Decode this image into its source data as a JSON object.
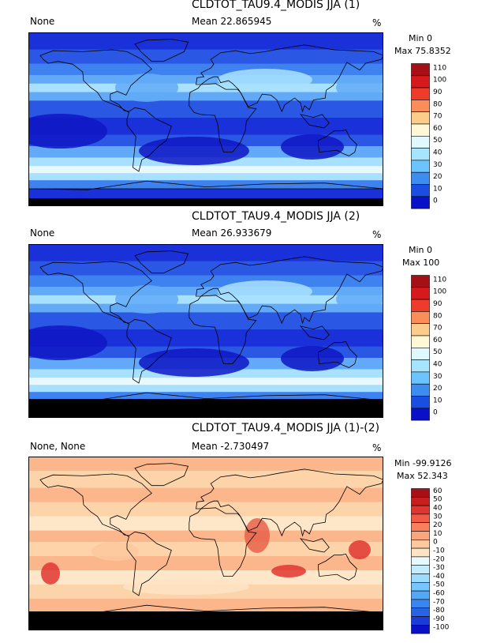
{
  "panels": [
    {
      "title": "CLDTOT_TAU9.4_MODIS JJA (1)",
      "left_label": "None",
      "mean_label": "Mean 22.865945",
      "units": "%",
      "min_label": "Min 0",
      "max_label": "Max 75.8352",
      "scale": "sequential",
      "colorbar": {
        "ticks": [
          "110",
          "100",
          "90",
          "80",
          "70",
          "60",
          "50",
          "40",
          "30",
          "20",
          "10",
          "0"
        ],
        "colors": [
          "#a50f15",
          "#d7191c",
          "#ef3b2c",
          "#fc8d59",
          "#fdcc8a",
          "#fff7d6",
          "#e0f8ff",
          "#a6e4ff",
          "#6cc4ff",
          "#3d8cf0",
          "#1a4de0",
          "#0a10c8"
        ]
      }
    },
    {
      "title": "CLDTOT_TAU9.4_MODIS JJA (2)",
      "left_label": "None",
      "mean_label": "Mean 26.933679",
      "units": "%",
      "min_label": "Min 0",
      "max_label": "Max 100",
      "scale": "sequential",
      "colorbar": {
        "ticks": [
          "110",
          "100",
          "90",
          "80",
          "70",
          "60",
          "50",
          "40",
          "30",
          "20",
          "10",
          "0"
        ],
        "colors": [
          "#a50f15",
          "#d7191c",
          "#ef3b2c",
          "#fc8d59",
          "#fdcc8a",
          "#fff7d6",
          "#e0f8ff",
          "#a6e4ff",
          "#6cc4ff",
          "#3d8cf0",
          "#1a4de0",
          "#0a10c8"
        ]
      }
    },
    {
      "title": "CLDTOT_TAU9.4_MODIS JJA (1)-(2)",
      "left_label": "None, None",
      "mean_label": "Mean -2.730497",
      "units": "%",
      "min_label": "Min -99.9126",
      "max_label": "Max 52.343",
      "scale": "difference",
      "colorbar": {
        "ticks": [
          "60",
          "50",
          "40",
          "30",
          "20",
          "10",
          "0",
          "-10",
          "-20",
          "-30",
          "-40",
          "-50",
          "-60",
          "-70",
          "-80",
          "-90",
          "-100"
        ],
        "colors": [
          "#a50f15",
          "#c81e1e",
          "#e03530",
          "#f25a45",
          "#f8805e",
          "#fba57e",
          "#fdc89e",
          "#fee3c4",
          "#e8f8ff",
          "#c4ecff",
          "#9edcff",
          "#78c6ff",
          "#52a8f8",
          "#3a86f0",
          "#2a62e6",
          "#1a3cd8",
          "#0a10c8"
        ]
      }
    }
  ]
}
